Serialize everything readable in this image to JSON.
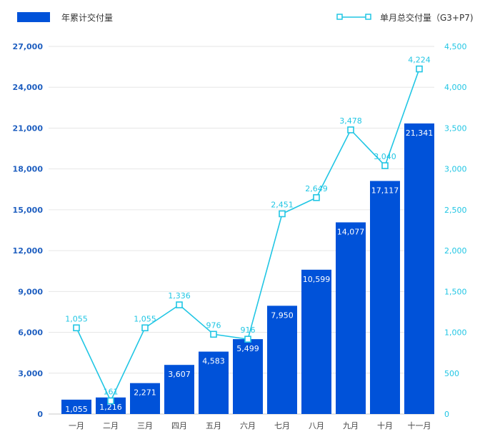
{
  "chart_data": {
    "type": "bar+line",
    "categories": [
      "一月",
      "二月",
      "三月",
      "四月",
      "五月",
      "六月",
      "七月",
      "八月",
      "九月",
      "十月",
      "十一月"
    ],
    "series": [
      {
        "name": "年累计交付量",
        "type": "bar",
        "axis": "left",
        "color": "#0052d9",
        "values": [
          1055,
          1216,
          2271,
          3607,
          4583,
          5499,
          7950,
          10599,
          14077,
          17117,
          21341
        ]
      },
      {
        "name": "单月总交付量（G3+P7)",
        "type": "line",
        "axis": "right",
        "color": "#21c6e4",
        "values": [
          1055,
          161,
          1055,
          1336,
          976,
          916,
          2451,
          2649,
          3478,
          3040,
          4224
        ]
      }
    ],
    "y_left": {
      "range": [
        0,
        27000
      ],
      "ticks": [
        "0",
        "3,000",
        "6,000",
        "9,000",
        "12,000",
        "15,000",
        "18,000",
        "21,000",
        "24,000",
        "27,000"
      ],
      "color": "#1f5fc0"
    },
    "y_right": {
      "range": [
        0,
        4500
      ],
      "ticks": [
        "0",
        "500",
        "1,000",
        "1,500",
        "2,000",
        "2,500",
        "3,000",
        "3,500",
        "4,000",
        "4,500"
      ],
      "color": "#21c6e4"
    },
    "grid": true,
    "legend_placement": "top"
  }
}
